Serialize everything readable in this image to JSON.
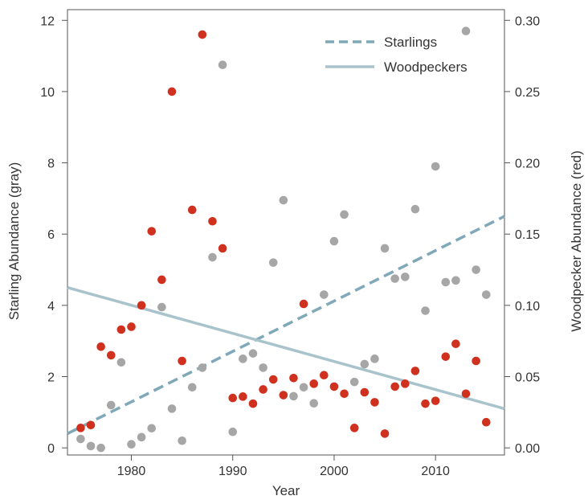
{
  "chart_data": {
    "type": "scatter",
    "title": "",
    "xlabel": "Year",
    "ylabel_left": "Starling Abundance (gray)",
    "ylabel_right": "Woodpecker Abundance  (red)",
    "xlim": [
      1973.7,
      2016.8
    ],
    "ylim_left": [
      -0.2,
      12.3
    ],
    "ylim_right": [
      -0.005,
      0.3075
    ],
    "x_ticks": [
      1980,
      1990,
      2000,
      2010
    ],
    "x_tick_labels": [
      "1980",
      "1990",
      "2000",
      "2010"
    ],
    "y_ticks_left": [
      0,
      2,
      4,
      6,
      8,
      10,
      12
    ],
    "y_tick_labels_left": [
      "0",
      "2",
      "4",
      "6",
      "8",
      "10",
      "12"
    ],
    "y_ticks_right": [
      0.0,
      0.05,
      0.1,
      0.15,
      0.2,
      0.25,
      0.3
    ],
    "y_tick_labels_right": [
      "0.00",
      "0.05",
      "0.10",
      "0.15",
      "0.20",
      "0.25",
      "0.30"
    ],
    "grid": false,
    "legend_position": "top-right",
    "legend": [
      {
        "label": "Starlings",
        "style": "dashed",
        "color": "#7fa8b8"
      },
      {
        "label": "Woodpeckers",
        "style": "solid",
        "color": "#a9c3cc"
      }
    ],
    "series": [
      {
        "name": "Starlings",
        "axis": "left",
        "color": "#a6a6a6",
        "points": [
          [
            1975,
            0.25
          ],
          [
            1976,
            0.05
          ],
          [
            1977,
            0.0
          ],
          [
            1978,
            1.2
          ],
          [
            1979,
            2.4
          ],
          [
            1980,
            0.1
          ],
          [
            1981,
            0.3
          ],
          [
            1982,
            0.55
          ],
          [
            1983,
            3.95
          ],
          [
            1984,
            1.1
          ],
          [
            1985,
            0.2
          ],
          [
            1986,
            1.7
          ],
          [
            1987,
            2.25
          ],
          [
            1988,
            5.35
          ],
          [
            1989,
            10.75
          ],
          [
            1990,
            0.45
          ],
          [
            1991,
            2.5
          ],
          [
            1992,
            2.65
          ],
          [
            1993,
            2.25
          ],
          [
            1994,
            5.2
          ],
          [
            1995,
            6.95
          ],
          [
            1996,
            1.45
          ],
          [
            1997,
            1.7
          ],
          [
            1998,
            1.25
          ],
          [
            1999,
            4.3
          ],
          [
            2000,
            5.8
          ],
          [
            2001,
            6.55
          ],
          [
            2002,
            1.85
          ],
          [
            2003,
            2.35
          ],
          [
            2004,
            2.5
          ],
          [
            2005,
            5.6
          ],
          [
            2006,
            4.75
          ],
          [
            2007,
            4.8
          ],
          [
            2008,
            6.7
          ],
          [
            2009,
            3.85
          ],
          [
            2010,
            7.9
          ],
          [
            2011,
            4.65
          ],
          [
            2012,
            4.7
          ],
          [
            2013,
            11.7
          ],
          [
            2014,
            5.0
          ],
          [
            2015,
            4.3
          ]
        ]
      },
      {
        "name": "Woodpeckers",
        "axis": "right",
        "color": "#d0311f",
        "points": [
          [
            1975,
            0.014
          ],
          [
            1976,
            0.016
          ],
          [
            1977,
            0.071
          ],
          [
            1978,
            0.065
          ],
          [
            1979,
            0.083
          ],
          [
            1980,
            0.085
          ],
          [
            1981,
            0.1
          ],
          [
            1982,
            0.152
          ],
          [
            1983,
            0.118
          ],
          [
            1984,
            0.25
          ],
          [
            1985,
            0.061
          ],
          [
            1986,
            0.167
          ],
          [
            1987,
            0.29
          ],
          [
            1988,
            0.159
          ],
          [
            1989,
            0.14
          ],
          [
            1990,
            0.035
          ],
          [
            1991,
            0.036
          ],
          [
            1992,
            0.031
          ],
          [
            1993,
            0.041
          ],
          [
            1994,
            0.048
          ],
          [
            1995,
            0.037
          ],
          [
            1996,
            0.049
          ],
          [
            1997,
            0.101
          ],
          [
            1998,
            0.045
          ],
          [
            1999,
            0.051
          ],
          [
            2000,
            0.043
          ],
          [
            2001,
            0.038
          ],
          [
            2002,
            0.014
          ],
          [
            2003,
            0.039
          ],
          [
            2004,
            0.032
          ],
          [
            2005,
            0.01
          ],
          [
            2006,
            0.043
          ],
          [
            2007,
            0.045
          ],
          [
            2008,
            0.054
          ],
          [
            2009,
            0.031
          ],
          [
            2010,
            0.033
          ],
          [
            2011,
            0.064
          ],
          [
            2012,
            0.073
          ],
          [
            2013,
            0.038
          ],
          [
            2014,
            0.061
          ],
          [
            2015,
            0.018
          ]
        ]
      }
    ],
    "trend_lines": [
      {
        "name": "Starlings",
        "axis": "left",
        "style": "dashed",
        "color": "#7fa8b8",
        "x": [
          1973.7,
          2016.8
        ],
        "y": [
          0.4,
          6.5
        ]
      },
      {
        "name": "Woodpeckers",
        "axis": "left",
        "style": "solid",
        "color": "#a9c3cc",
        "x": [
          1973.7,
          2016.8
        ],
        "y": [
          4.5,
          1.1
        ]
      }
    ]
  }
}
